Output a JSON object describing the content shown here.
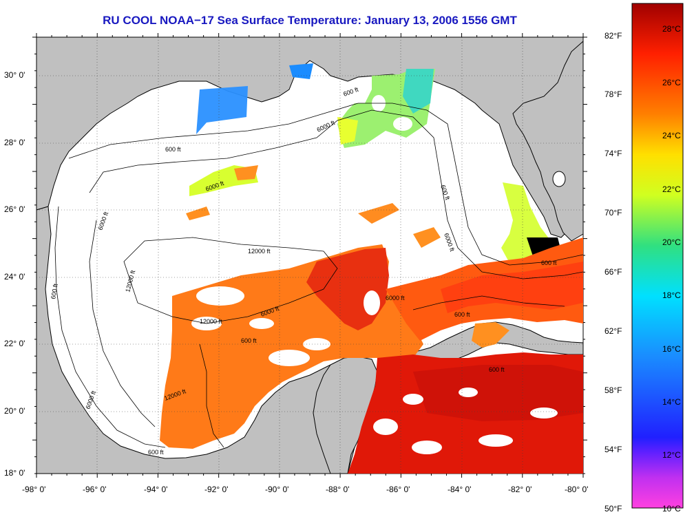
{
  "title": "RU COOL  NOAA−17  Sea Surface Temperature:  January 13, 2006 1556 GMT",
  "map": {
    "lon_labels": [
      "-98° 0'",
      "-96° 0'",
      "-94° 0'",
      "-92° 0'",
      "-90° 0'",
      "-88° 0'",
      "-86° 0'",
      "-84° 0'",
      "-82° 0'",
      "-80° 0'"
    ],
    "lat_labels": [
      "30° 0'",
      "28° 0'",
      "26° 0'",
      "24° 0'",
      "22° 0'",
      "20° 0'",
      "18° 0'"
    ],
    "lon_range": [
      -98,
      -80
    ],
    "lat_range": [
      18,
      31
    ],
    "contour_labels": [
      "600 ft",
      "6000 ft",
      "12000 ft",
      "12000 ft",
      "6000 ft",
      "600 ft",
      "6000 ft",
      "600 ft",
      "600 ft",
      "6000 ft",
      "600 ft",
      "6000 ft",
      "600 ft",
      "6000 ft",
      "600 ft",
      "600 ft",
      "12000 ft",
      "6000 ft",
      "600 ft",
      "12000 ft"
    ],
    "colors": {
      "land": "#c0c0c0",
      "no_data": "#ffffff",
      "grid": "#404040",
      "title": "#1818c0"
    }
  },
  "colorbar": {
    "f_labels": [
      "82°F",
      "78°F",
      "74°F",
      "70°F",
      "66°F",
      "62°F",
      "58°F",
      "54°F",
      "50°F"
    ],
    "c_labels": [
      "28°C",
      "26°C",
      "24°C",
      "22°C",
      "20°C",
      "18°C",
      "16°C",
      "14°C",
      "12°C",
      "10°C"
    ],
    "range_c": [
      10,
      29.2
    ],
    "colormap": [
      "#ff40e0",
      "#8020ff",
      "#2020ff",
      "#1a8cff",
      "#00e0ff",
      "#30e080",
      "#d0ff20",
      "#ffe000",
      "#ff8000",
      "#ff2000",
      "#a00000"
    ]
  }
}
